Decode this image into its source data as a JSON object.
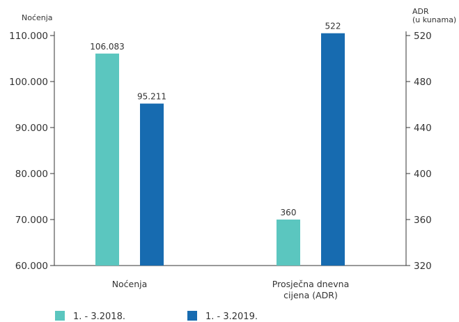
{
  "chart_data": {
    "type": "bar",
    "title": "",
    "left_axis": {
      "title": "Noćenja",
      "ylim": [
        60000,
        110000
      ],
      "ticks": [
        60000,
        70000,
        80000,
        90000,
        100000,
        110000
      ],
      "tick_labels": [
        "60.000",
        "70.000",
        "80.000",
        "90.000",
        "100.000",
        "110.000"
      ]
    },
    "right_axis": {
      "title_lines": [
        "ADR",
        "(u kunama)"
      ],
      "ylim": [
        320,
        520
      ],
      "ticks": [
        320,
        360,
        400,
        440,
        480,
        520
      ],
      "tick_labels": [
        "320",
        "360",
        "400",
        "440",
        "480",
        "520"
      ]
    },
    "categories": [
      {
        "label_lines": [
          "Noćenja"
        ],
        "axis": "left"
      },
      {
        "label_lines": [
          "Prosječna dnevna",
          "cijena (ADR)"
        ],
        "axis": "right"
      }
    ],
    "series": [
      {
        "name": "1. - 3.2018.",
        "color": "#5bc6bf",
        "values": [
          106083,
          360
        ],
        "value_labels": [
          "106.083",
          "360"
        ]
      },
      {
        "name": "1. - 3.2019.",
        "color": "#176bb0",
        "values": [
          95211,
          522
        ],
        "value_labels": [
          "95.211",
          "522"
        ]
      }
    ],
    "legend_position": "bottom-left",
    "grid": false
  }
}
